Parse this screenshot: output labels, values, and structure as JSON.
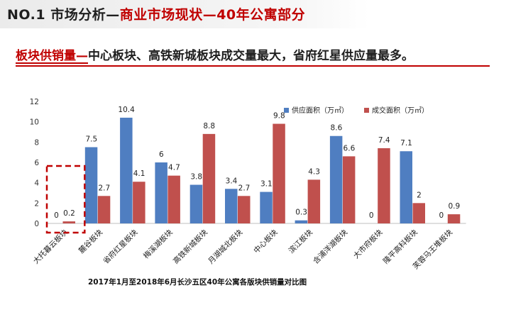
{
  "header": {
    "title_prefix": "NO.1 市场分析—",
    "title_accent": "商业市场现状—40年公寓部分"
  },
  "subtitle": {
    "lead": "板块供销量—",
    "text": "中心板块、高铁新城板块成交量最大，省府红星供应量最多。"
  },
  "colors": {
    "supply": "#4f7ec1",
    "deal": "#c0504d",
    "accent": "#c00000",
    "highlight": "#c00000"
  },
  "chart_data": {
    "type": "bar",
    "categories": [
      "大托暮云板块",
      "麓谷板块",
      "省府红星板块",
      "梅溪湖板块",
      "高铁新城板块",
      "月湖城北板块",
      "中心板块",
      "滨江板块",
      "含浦洋湖板块",
      "大市府板块",
      "隆平高科板块",
      "芙蓉马王堆板块"
    ],
    "series": [
      {
        "name": "供应面积（万㎡）",
        "values": [
          0,
          7.5,
          10.4,
          6,
          3.8,
          3.4,
          3.1,
          0.3,
          8.6,
          0,
          7.1,
          0
        ]
      },
      {
        "name": "成交面积（万㎡）",
        "values": [
          0.2,
          2.7,
          4.1,
          4.7,
          8.8,
          2.7,
          9.8,
          4.3,
          6.6,
          7.4,
          2,
          0.9
        ]
      }
    ],
    "data_labels": [
      [
        "0",
        "7.5",
        "10.4",
        "6",
        "3.8",
        "3.4",
        "3.1",
        "0.3",
        "8.6",
        "0",
        "7.1",
        "0"
      ],
      [
        "0.2",
        "2.7",
        "4.1",
        "4.7",
        "8.8",
        "2.7",
        "9.8",
        "4.3",
        "6.6",
        "7.4",
        "2",
        "0.9"
      ]
    ],
    "ylim": [
      0,
      12
    ],
    "yticks": [
      0,
      2,
      4,
      6,
      8,
      10,
      12
    ],
    "xlabel": "",
    "ylabel": "",
    "grid": false,
    "legend_position": "top-right",
    "highlighted_category": "大托暮云板块",
    "caption": "2017年1月至2018年6月长沙五区40年公寓各版块供销量对比图"
  }
}
